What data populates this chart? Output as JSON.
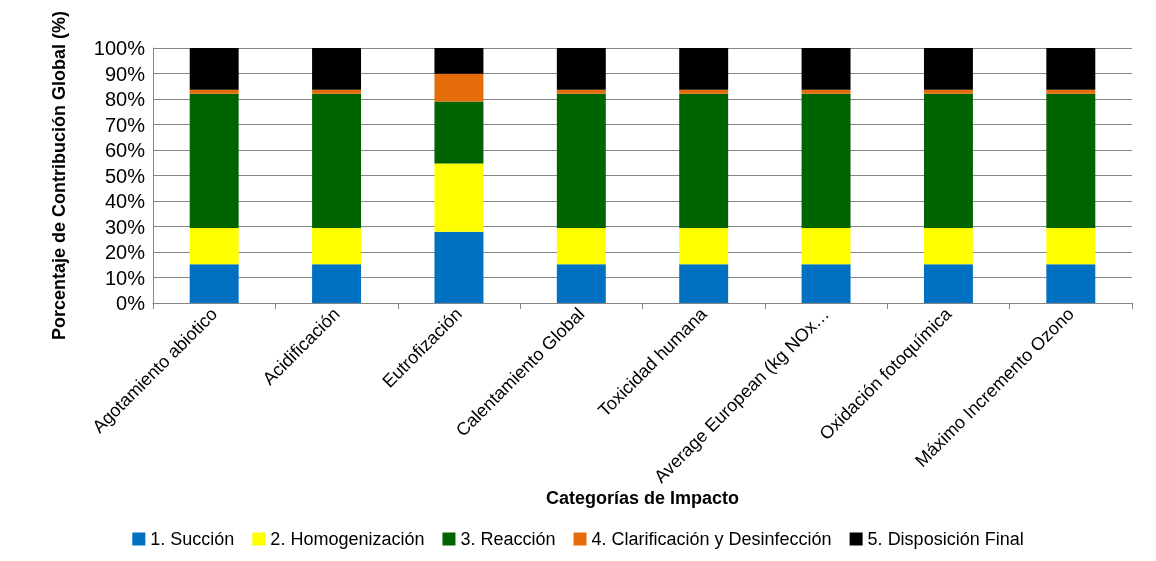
{
  "chart_data": {
    "type": "bar",
    "stacked": true,
    "xlabel": "Categorías de Impacto",
    "ylabel": "Porcentaje de Contribución Global (%)",
    "categories": [
      "Agotamiento abiotico",
      "Acidificación",
      "Eutrofización",
      "Calentamiento Global",
      "Toxicidad humana",
      "Average European (kg NOx…",
      "Oxidación fotoquímica",
      "Máximo Incremento Ozono"
    ],
    "series": [
      {
        "name": "1. Succión",
        "color": "#0070c0",
        "values": [
          15.2,
          15.2,
          27.9,
          15.2,
          15.2,
          15.2,
          15.2,
          15.2
        ]
      },
      {
        "name": "2. Homogenización",
        "color": "#ffff00",
        "values": [
          14.2,
          14.2,
          26.8,
          14.2,
          14.2,
          14.2,
          14.2,
          14.2
        ]
      },
      {
        "name": "3. Reacción",
        "color": "#006400",
        "values": [
          52.7,
          52.7,
          24.3,
          52.7,
          52.7,
          52.7,
          52.7,
          52.7
        ]
      },
      {
        "name": "4. Clarificación y Desinfección",
        "color": "#e46c0a",
        "values": [
          1.5,
          1.5,
          10.9,
          1.5,
          1.5,
          1.5,
          1.5,
          1.5
        ]
      },
      {
        "name": "5. Disposición Final",
        "color": "#000000",
        "values": [
          16.4,
          16.4,
          10.1,
          16.4,
          16.4,
          16.4,
          16.4,
          16.4
        ]
      }
    ],
    "ylim": [
      0,
      100
    ],
    "yticks": [
      {
        "value": 0,
        "label": "0%"
      },
      {
        "value": 10,
        "label": "10%"
      },
      {
        "value": 20,
        "label": "20%"
      },
      {
        "value": 30,
        "label": "30%"
      },
      {
        "value": 40,
        "label": "40%"
      },
      {
        "value": 50,
        "label": "50%"
      },
      {
        "value": 60,
        "label": "60%"
      },
      {
        "value": 70,
        "label": "70%"
      },
      {
        "value": 80,
        "label": "80%"
      },
      {
        "value": 90,
        "label": "90%"
      },
      {
        "value": 100,
        "label": "100%"
      }
    ],
    "grid": "y",
    "legend": "bottom"
  }
}
